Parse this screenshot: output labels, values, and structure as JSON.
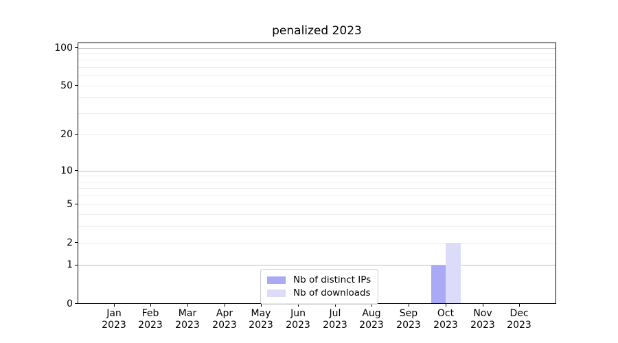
{
  "chart_data": {
    "type": "bar",
    "title": "penalized 2023",
    "xlabel": "",
    "ylabel": "",
    "categories": [
      "Jan 2023",
      "Feb 2023",
      "Mar 2023",
      "Apr 2023",
      "May 2023",
      "Jun 2023",
      "Jul 2023",
      "Aug 2023",
      "Sep 2023",
      "Oct 2023",
      "Nov 2023",
      "Dec 2023"
    ],
    "x_tick_months": [
      "Jan",
      "Feb",
      "Mar",
      "Apr",
      "May",
      "Jun",
      "Jul",
      "Aug",
      "Sep",
      "Oct",
      "Nov",
      "Dec"
    ],
    "x_tick_year": "2023",
    "series": [
      {
        "name": "Nb of distinct IPs",
        "color": "#a9a9f6",
        "values": [
          0,
          0,
          0,
          0,
          0,
          0,
          0,
          0,
          0,
          1,
          0,
          0
        ]
      },
      {
        "name": "Nb of downloads",
        "color": "#dcdcf9",
        "values": [
          0,
          0,
          0,
          0,
          0,
          0,
          0,
          0,
          0,
          2,
          0,
          0
        ]
      }
    ],
    "yscale": "log1p",
    "ylim": [
      0,
      110
    ],
    "yticks": [
      100,
      50,
      20,
      10,
      5,
      2,
      1,
      0
    ],
    "grid": {
      "major_values": [
        1,
        10,
        100
      ],
      "minor_values": [
        2,
        3,
        4,
        5,
        6,
        7,
        8,
        9,
        20,
        30,
        40,
        50,
        60,
        70,
        80,
        90
      ],
      "major_color": "#bdbdbd",
      "minor_color": "#ececec",
      "on": true
    },
    "legend": {
      "position": "lower center",
      "entries": [
        "Nb of distinct IPs",
        "Nb of downloads"
      ],
      "border_color": "#cccccc"
    },
    "axis_color": "#000000",
    "background_color": "#ffffff"
  }
}
